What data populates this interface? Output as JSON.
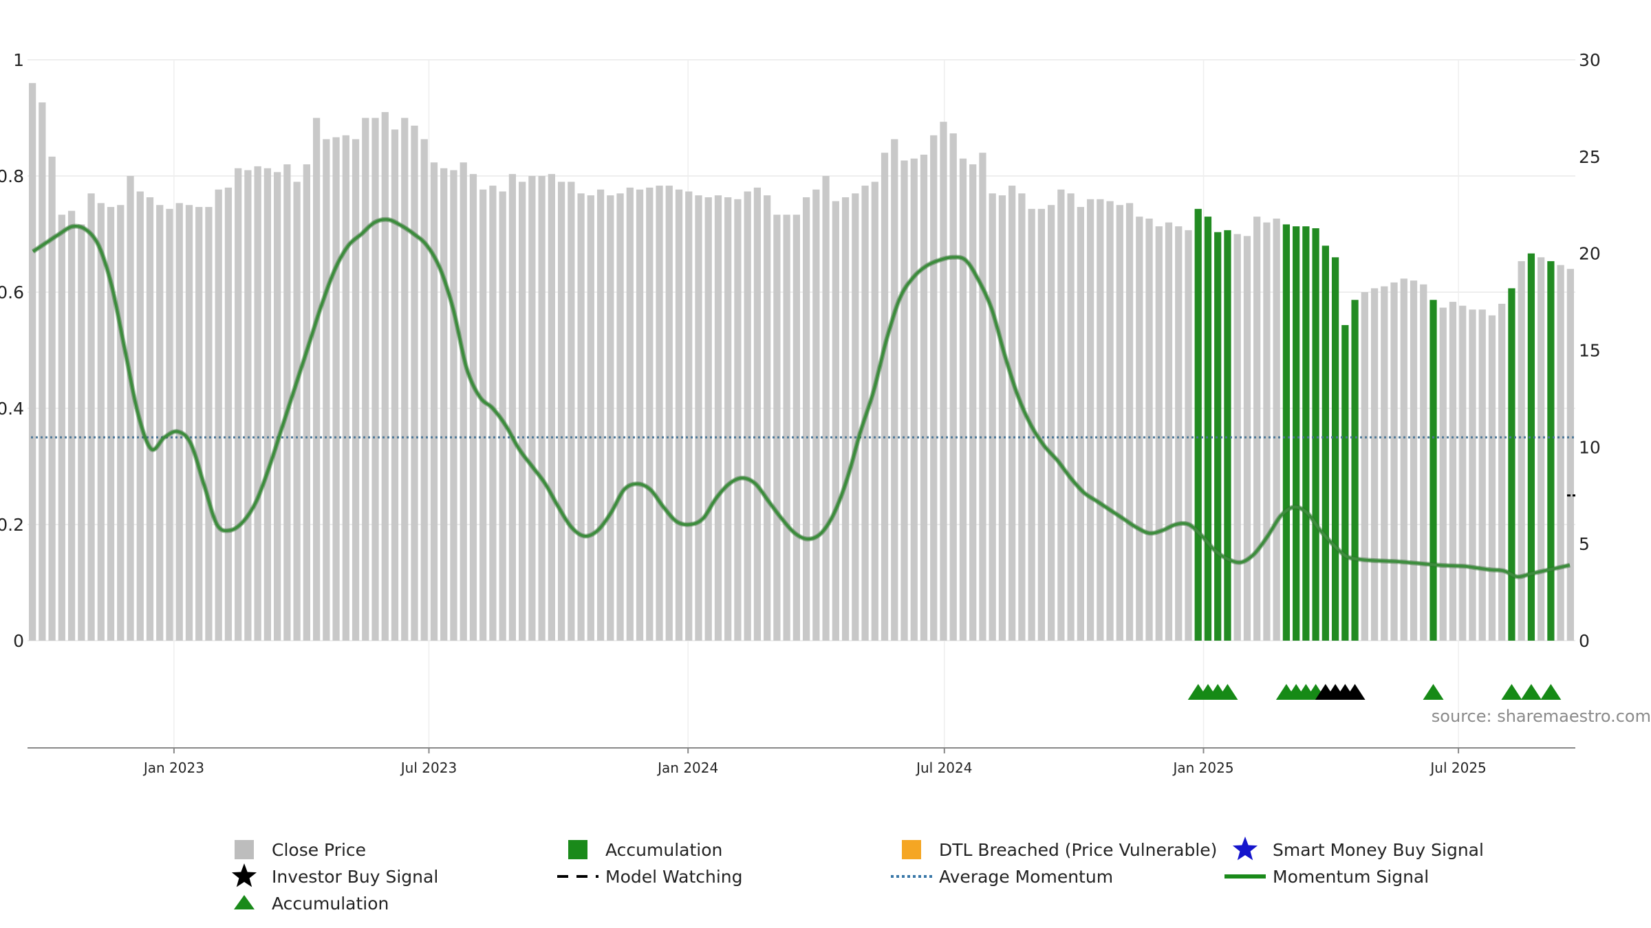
{
  "chart_data": {
    "type": "bar",
    "source": "source: sharemaestro.com",
    "left_axis": {
      "min": 0,
      "max": 1,
      "ticks": [
        0,
        0.2,
        0.4,
        0.6,
        0.8,
        1
      ],
      "tick_labels": [
        "0",
        "0.2",
        "0.4",
        "0.6",
        "0.8",
        "1"
      ]
    },
    "right_axis": {
      "min": 0,
      "max": 30,
      "ticks": [
        0,
        5,
        10,
        15,
        20,
        25,
        30
      ],
      "tick_labels": [
        "0",
        "5",
        "10",
        "15",
        "20",
        "25",
        "30"
      ]
    },
    "x_axis": {
      "start": "2022-09-19",
      "end": "2025-09-22",
      "ticks": [
        {
          "date": "2023-01-01",
          "label": "Jan 2023"
        },
        {
          "date": "2023-07-01",
          "label": "Jul 2023"
        },
        {
          "date": "2024-01-01",
          "label": "Jan 2024"
        },
        {
          "date": "2024-07-01",
          "label": "Jul 2024"
        },
        {
          "date": "2025-01-01",
          "label": "Jan 2025"
        },
        {
          "date": "2025-07-01",
          "label": "Jul 2025"
        }
      ]
    },
    "close_price": [
      28.8,
      27.8,
      25.0,
      22.0,
      22.2,
      21.5,
      23.1,
      22.6,
      22.4,
      22.5,
      24.0,
      23.2,
      22.9,
      22.5,
      22.3,
      22.6,
      22.5,
      22.4,
      22.4,
      23.3,
      23.4,
      24.4,
      24.3,
      24.5,
      24.4,
      24.2,
      24.6,
      23.7,
      24.6,
      27.0,
      25.9,
      26.0,
      26.1,
      25.9,
      27.0,
      27.0,
      27.3,
      26.4,
      27.0,
      26.6,
      25.9,
      24.7,
      24.4,
      24.3,
      24.7,
      24.1,
      23.3,
      23.5,
      23.2,
      24.1,
      23.7,
      24.0,
      24.0,
      24.1,
      23.7,
      23.7,
      23.1,
      23.0,
      23.3,
      23.0,
      23.1,
      23.4,
      23.3,
      23.4,
      23.5,
      23.5,
      23.3,
      23.2,
      23.0,
      22.9,
      23.0,
      22.9,
      22.8,
      23.2,
      23.4,
      23.0,
      22.0,
      22.0,
      22.0,
      22.9,
      23.3,
      24.0,
      22.7,
      22.9,
      23.1,
      23.5,
      23.7,
      25.2,
      25.9,
      24.8,
      24.9,
      25.1,
      26.1,
      26.8,
      26.2,
      24.9,
      24.6,
      25.2,
      23.1,
      23.0,
      23.5,
      23.1,
      22.3,
      22.3,
      22.5,
      23.3,
      23.1,
      22.4,
      22.8,
      22.8,
      22.7,
      22.5,
      22.6,
      21.9,
      21.8,
      21.4,
      21.6,
      21.4,
      21.2,
      22.3,
      21.9,
      21.1,
      21.2,
      21.0,
      20.9,
      21.9,
      21.6,
      21.8,
      21.5,
      21.4,
      21.4,
      21.3,
      20.4,
      19.8,
      16.3,
      17.6,
      18.0,
      18.2,
      18.3,
      18.5,
      18.7,
      18.6,
      18.4,
      17.6,
      17.2,
      17.5,
      17.3,
      17.1,
      17.1,
      16.8,
      17.4,
      18.2,
      19.6,
      20.0,
      19.8,
      19.6,
      19.4,
      19.2
    ],
    "accumulation_bars": [
      119,
      120,
      121,
      122,
      128,
      129,
      130,
      131,
      132,
      133,
      134,
      135,
      143,
      151,
      153,
      155
    ],
    "momentum": [
      0.67,
      0.685,
      0.7,
      0.713,
      0.708,
      0.68,
      0.61,
      0.5,
      0.39,
      0.33,
      0.35,
      0.36,
      0.34,
      0.27,
      0.2,
      0.19,
      0.205,
      0.24,
      0.3,
      0.37,
      0.44,
      0.51,
      0.58,
      0.64,
      0.68,
      0.7,
      0.72,
      0.725,
      0.715,
      0.7,
      0.68,
      0.64,
      0.57,
      0.47,
      0.42,
      0.4,
      0.37,
      0.33,
      0.3,
      0.27,
      0.23,
      0.195,
      0.18,
      0.19,
      0.22,
      0.26,
      0.27,
      0.26,
      0.23,
      0.205,
      0.2,
      0.21,
      0.245,
      0.27,
      0.28,
      0.27,
      0.24,
      0.21,
      0.185,
      0.175,
      0.185,
      0.22,
      0.28,
      0.36,
      0.43,
      0.52,
      0.59,
      0.625,
      0.645,
      0.655,
      0.66,
      0.655,
      0.62,
      0.57,
      0.49,
      0.42,
      0.37,
      0.335,
      0.31,
      0.28,
      0.255,
      0.24,
      0.225,
      0.21,
      0.195,
      0.185,
      0.19,
      0.2,
      0.2,
      0.18,
      0.155,
      0.14,
      0.135,
      0.15,
      0.18,
      0.215,
      0.23,
      0.22,
      0.19,
      0.165,
      0.145,
      0.14,
      0.138,
      0.137,
      0.136,
      0.134,
      0.132,
      0.13,
      0.129,
      0.128,
      0.125,
      0.122,
      0.12,
      0.11,
      0.115,
      0.12,
      0.125,
      0.13
    ],
    "average_momentum": 0.35,
    "model_watching_value": 7.5,
    "triangle_markers": [
      {
        "index": 119,
        "color": "green"
      },
      {
        "index": 120,
        "color": "green"
      },
      {
        "index": 121,
        "color": "green"
      },
      {
        "index": 122,
        "color": "green"
      },
      {
        "index": 128,
        "color": "green"
      },
      {
        "index": 129,
        "color": "green"
      },
      {
        "index": 130,
        "color": "green"
      },
      {
        "index": 131,
        "color": "green"
      },
      {
        "index": 132,
        "color": "black"
      },
      {
        "index": 133,
        "color": "black"
      },
      {
        "index": 134,
        "color": "black"
      },
      {
        "index": 135,
        "color": "black"
      },
      {
        "index": 143,
        "color": "green"
      },
      {
        "index": 151,
        "color": "green"
      },
      {
        "index": 153,
        "color": "green"
      },
      {
        "index": 155,
        "color": "green"
      }
    ],
    "legend": [
      {
        "label": "Close Price",
        "symbol": "square",
        "color": "#bdbdbd"
      },
      {
        "label": "Accumulation",
        "symbol": "square",
        "color": "#1a8a1a"
      },
      {
        "label": "DTL Breached (Price Vulnerable)",
        "symbol": "square",
        "color": "#f5a623"
      },
      {
        "label": "Smart Money Buy Signal",
        "symbol": "star",
        "color": "#1515cc"
      },
      {
        "label": "Investor Buy Signal",
        "symbol": "star",
        "color": "#000000"
      },
      {
        "label": "Model Watching",
        "symbol": "dash",
        "color": "#000000"
      },
      {
        "label": "Average Momentum",
        "symbol": "dotted",
        "color": "#3a78a8"
      },
      {
        "label": "Momentum Signal",
        "symbol": "line",
        "color": "#1a8a1a"
      },
      {
        "label": "Accumulation",
        "symbol": "triangle",
        "color": "#1a8a1a"
      }
    ]
  },
  "colors": {
    "close_bar": "#c8c8c8",
    "accumulation_bar": "#228b22",
    "momentum_line": "#3c8c3c",
    "average_line": "#4a7596",
    "grid": "#e8e8e8",
    "triangle_green": "#168a16",
    "triangle_black": "#000000"
  }
}
